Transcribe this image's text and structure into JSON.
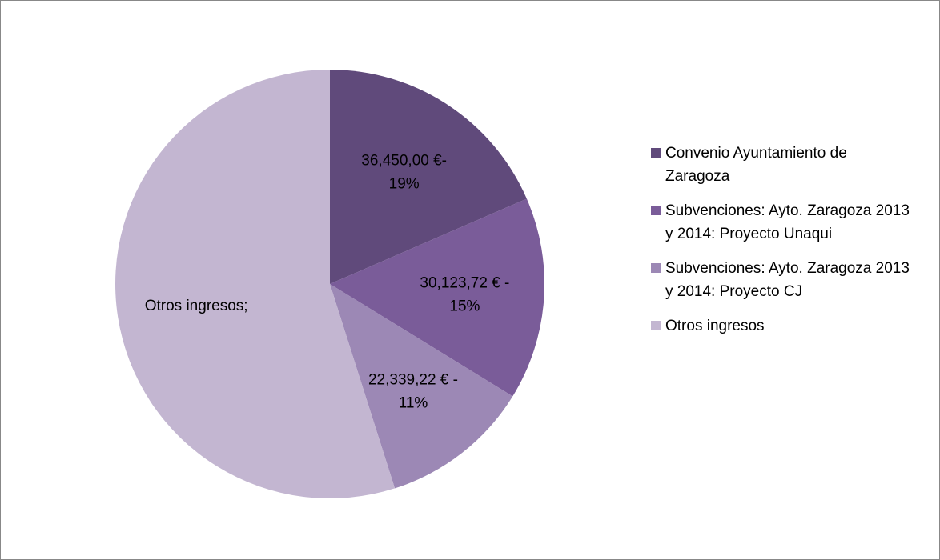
{
  "chart_data": {
    "type": "pie",
    "categories": [
      "Convenio Ayuntamiento de Zaragoza",
      "Subvenciones: Ayto. Zaragoza 2013 y 2014: Proyecto Unaqui",
      "Subvenciones: Ayto. Zaragoza 2013 y 2014: Proyecto CJ",
      "Otros ingresos"
    ],
    "values": [
      36450.0,
      30123.72,
      22339.22,
      108200
    ],
    "value_labels": [
      [
        "36,450,00 €-",
        "19%"
      ],
      [
        "30,123,72 € -",
        "15%"
      ],
      [
        "22,339,22 € -",
        "11%"
      ],
      [
        "Otros ingresos;"
      ]
    ],
    "colors": [
      "#604a7b",
      "#7a5c99",
      "#9c88b5",
      "#c3b6d1"
    ],
    "legend": "right"
  }
}
